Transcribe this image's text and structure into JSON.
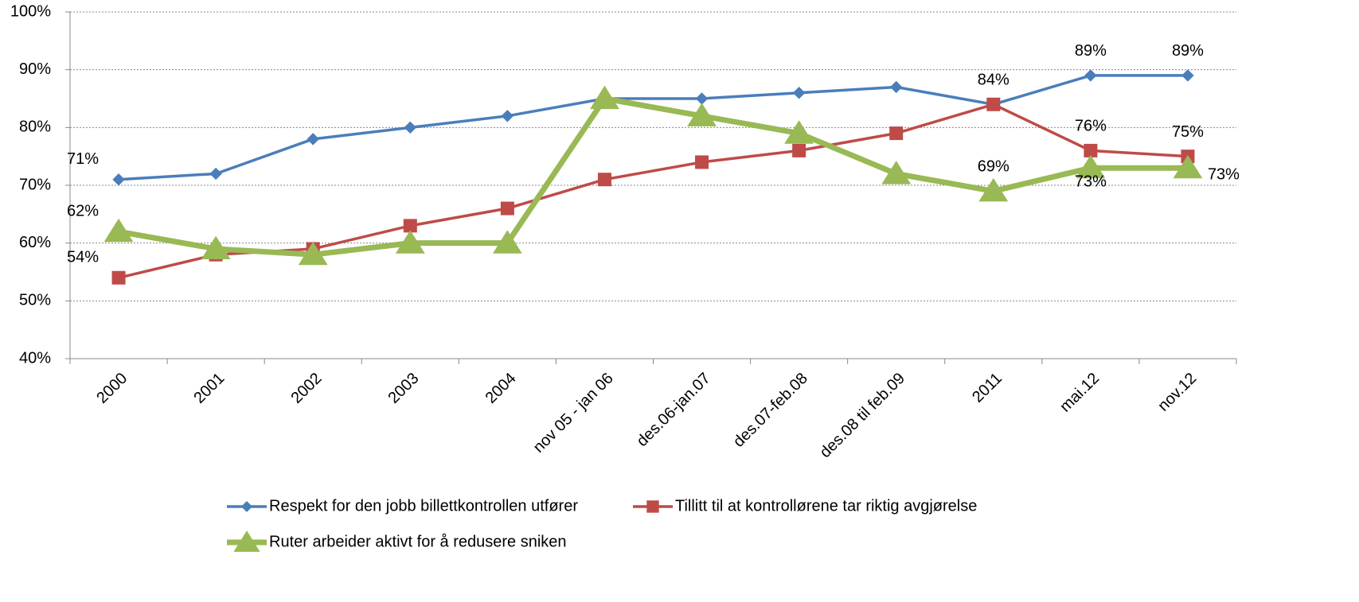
{
  "chart_data": {
    "type": "line",
    "categories": [
      "2000",
      "2001",
      "2002",
      "2003",
      "2004",
      "nov 05 - jan 06",
      "des.06-jan.07",
      "des.07-feb.08",
      "des.08 til feb.09",
      "2011",
      "mai.12",
      "nov.12"
    ],
    "series": [
      {
        "name": "Respekt for den jobb billettkontrollen utfører",
        "color": "#4a7ebb",
        "marker": "diamond",
        "values": [
          71,
          72,
          78,
          80,
          82,
          85,
          85,
          86,
          87,
          84,
          89,
          89
        ],
        "value_labels": [
          "71%",
          null,
          null,
          null,
          null,
          null,
          null,
          null,
          null,
          null,
          "89%",
          "89%"
        ]
      },
      {
        "name": "Tillitt til at kontrollørene tar riktig avgjørelse",
        "color": "#be4b48",
        "marker": "square",
        "values": [
          54,
          58,
          59,
          63,
          66,
          71,
          74,
          76,
          79,
          84,
          76,
          75
        ],
        "value_labels": [
          "54%",
          null,
          null,
          null,
          null,
          null,
          null,
          null,
          null,
          "84%",
          "76%",
          "75%"
        ]
      },
      {
        "name": "Ruter arbeider aktivt for å redusere sniken",
        "color": "#98b954",
        "marker": "triangle",
        "values": [
          62,
          59,
          58,
          60,
          60,
          85,
          82,
          79,
          72,
          69,
          73,
          73
        ],
        "value_labels": [
          "62%",
          null,
          null,
          null,
          null,
          null,
          null,
          null,
          null,
          "69%",
          "73%",
          "73%"
        ]
      }
    ],
    "ylim": [
      40,
      100
    ],
    "yticks": [
      {
        "value": 40,
        "label": "40%"
      },
      {
        "value": 50,
        "label": "50%"
      },
      {
        "value": 60,
        "label": "60%"
      },
      {
        "value": 70,
        "label": "70%"
      },
      {
        "value": 80,
        "label": "80%"
      },
      {
        "value": 90,
        "label": "90%"
      },
      {
        "value": 100,
        "label": "100%"
      }
    ],
    "grid": true,
    "legend": "bottom"
  }
}
